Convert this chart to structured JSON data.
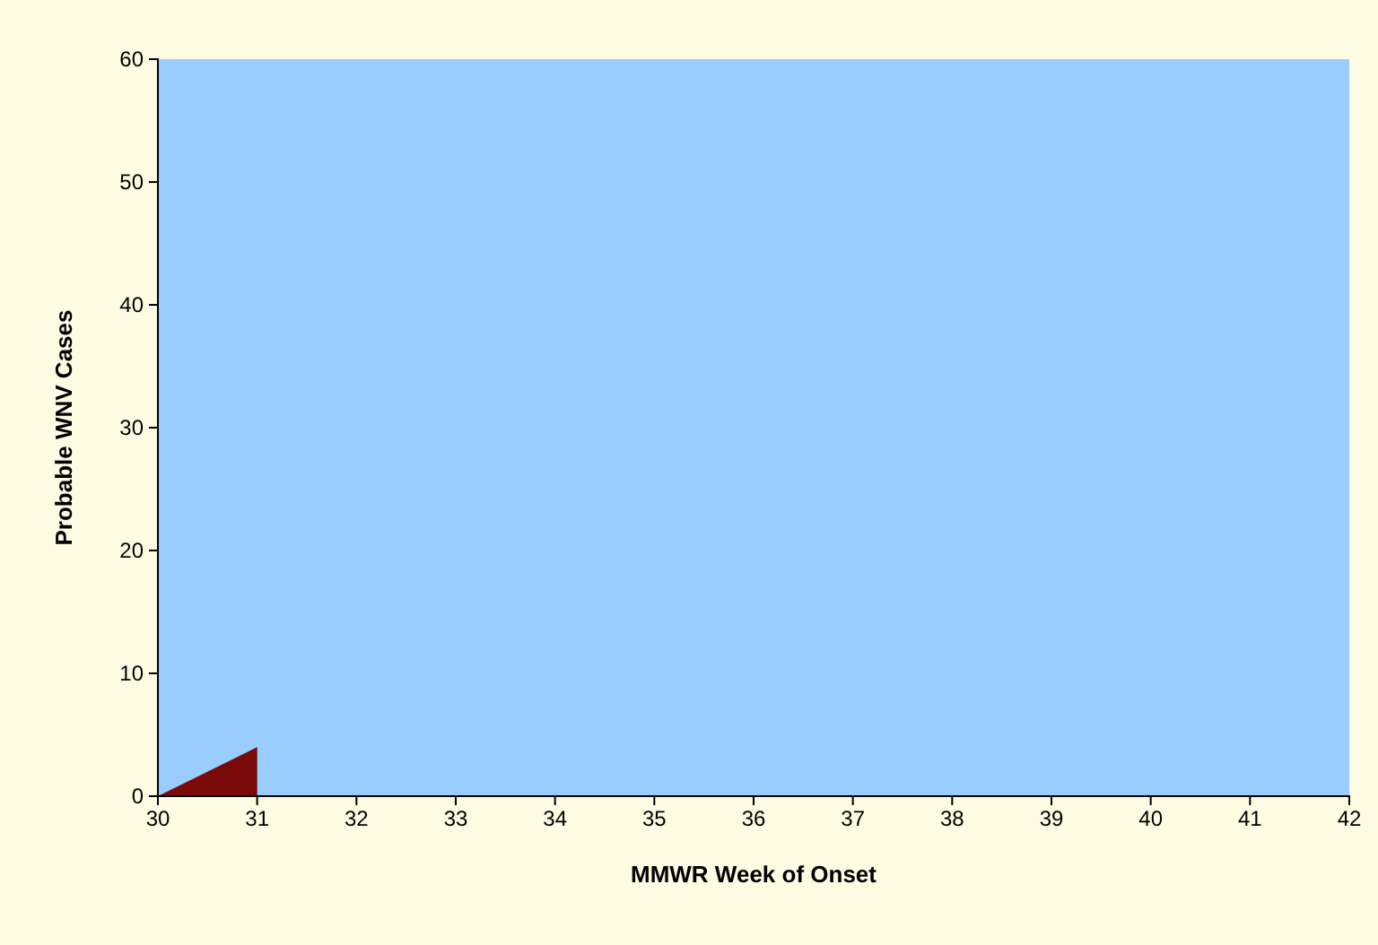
{
  "chart_data": {
    "type": "area",
    "xlabel": "MMWR Week of Onset",
    "ylabel": "Probable WNV Cases",
    "x": [
      30,
      31
    ],
    "series": [
      {
        "color": "#7a0a0a",
        "values": [
          0,
          4
        ]
      }
    ],
    "xlim": [
      30,
      42
    ],
    "xticks": [
      30,
      31,
      32,
      33,
      34,
      35,
      36,
      37,
      38,
      39,
      40,
      41,
      42
    ],
    "ylim": [
      0,
      60
    ],
    "yticks": [
      0,
      10,
      20,
      30,
      40,
      50,
      60
    ],
    "grid": false
  }
}
